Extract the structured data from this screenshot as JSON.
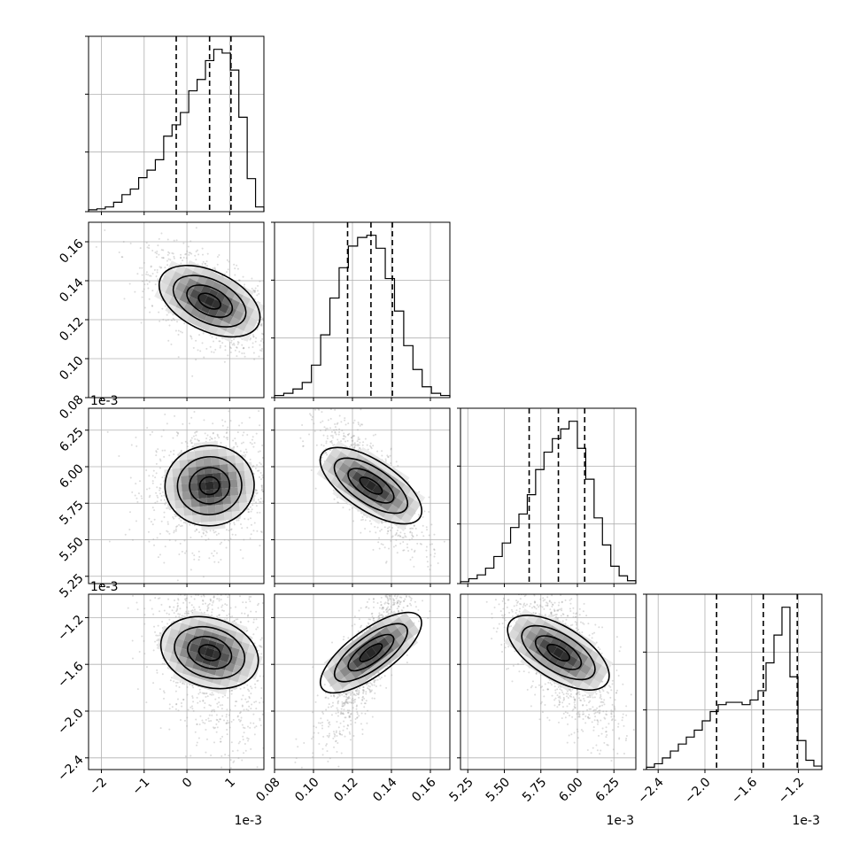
{
  "chart_data": {
    "type": "corner",
    "grid": true,
    "quantile_lines": "dashed",
    "panels_per_side": 4,
    "params": [
      {
        "range": [
          -2.3,
          1.8
        ],
        "offset_label": "1e-3",
        "ticks": [
          -2,
          -1,
          0,
          1
        ],
        "tick_labels": [
          "−2",
          "−1",
          "0",
          "1"
        ],
        "quantiles": [
          -0.25,
          0.53,
          1.03
        ],
        "hist": [
          2,
          3,
          5,
          10,
          18,
          24,
          36,
          44,
          55,
          80,
          92,
          105,
          128,
          140,
          160,
          172,
          168,
          150,
          100,
          35,
          5
        ],
        "center": [
          0.6,
          0
        ],
        "sigma": [
          0.7,
          0.014
        ],
        "skew": -1
      },
      {
        "range": [
          0.08,
          0.17
        ],
        "offset_label": "",
        "ticks": [
          0.08,
          0.1,
          0.12,
          0.14,
          0.16
        ],
        "tick_labels": [
          "0.08",
          "0.10",
          "0.12",
          "0.14",
          "0.16"
        ],
        "quantiles": [
          0.1175,
          0.1295,
          0.1405
        ],
        "hist": [
          2,
          4,
          8,
          14,
          30,
          58,
          92,
          120,
          140,
          148,
          150,
          138,
          110,
          80,
          48,
          26,
          10,
          4,
          2
        ],
        "center": [
          0.13,
          0
        ],
        "sigma": [
          0.012,
          0
        ]
      },
      {
        "range": [
          5.2,
          6.4
        ],
        "offset_label": "1e-3",
        "ticks": [
          5.25,
          5.5,
          5.75,
          6.0,
          6.25
        ],
        "tick_labels": [
          "5.25",
          "5.50",
          "5.75",
          "6.00",
          "6.25"
        ],
        "quantiles": [
          5.67,
          5.87,
          6.05
        ],
        "hist": [
          2,
          5,
          9,
          16,
          28,
          42,
          58,
          72,
          92,
          118,
          136,
          150,
          160,
          168,
          140,
          108,
          68,
          40,
          18,
          8,
          3
        ],
        "center": [
          5.87,
          0
        ],
        "sigma": [
          0.18,
          0
        ]
      },
      {
        "range": [
          -2.5,
          -1.0
        ],
        "offset_label": "1e-3",
        "ticks": [
          -2.4,
          -2.0,
          -1.6,
          -1.2
        ],
        "tick_labels": [
          "−2.4",
          "−2.0",
          "−1.6",
          "−1.2"
        ],
        "quantiles": [
          -1.9,
          -1.5,
          -1.21
        ],
        "hist": [
          2,
          5,
          10,
          16,
          22,
          28,
          34,
          42,
          50,
          56,
          58,
          58,
          56,
          60,
          68,
          92,
          116,
          140,
          80,
          25,
          8,
          3
        ],
        "center": [
          -1.25,
          0
        ],
        "sigma": [
          0.4,
          0
        ],
        "skew": -1
      }
    ]
  }
}
